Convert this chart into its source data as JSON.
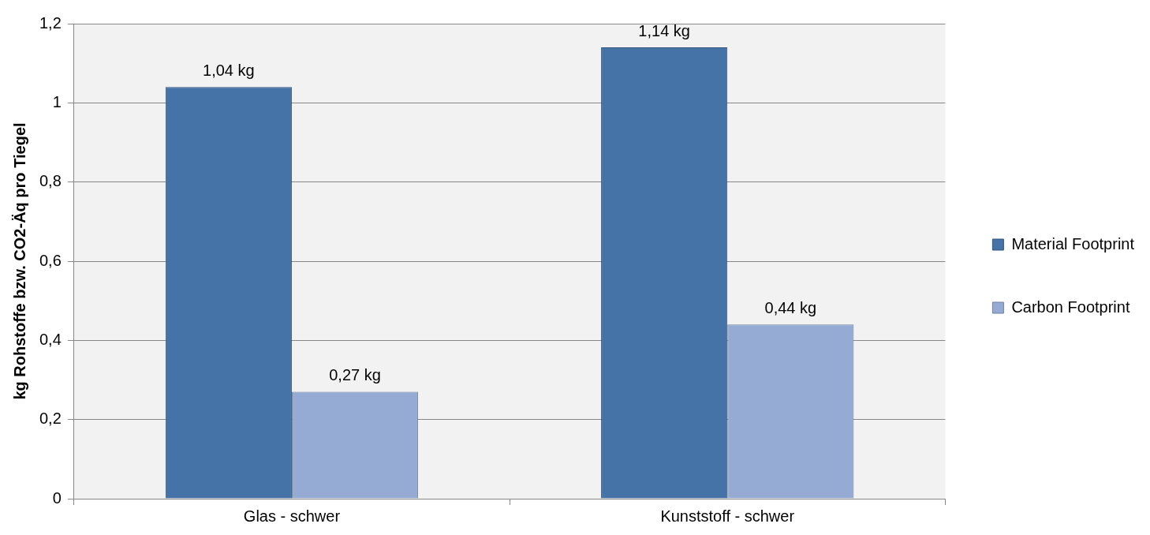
{
  "chart_data": {
    "type": "bar",
    "ylabel": "kg Rohstoffe bzw. CO2-Äq pro Tiegel",
    "categories": [
      "Glas - schwer",
      "Kunststoff - schwer"
    ],
    "series": [
      {
        "name": "Material Footprint",
        "color": "#4572a7",
        "values": [
          1.04,
          1.14
        ],
        "value_labels": [
          "1,04 kg",
          "1,14 kg"
        ]
      },
      {
        "name": "Carbon Footprint",
        "color": "#95abd3",
        "values": [
          0.27,
          0.44
        ],
        "value_labels": [
          "0,27 kg",
          "0,44 kg"
        ]
      }
    ],
    "ylim": [
      0,
      1.2
    ],
    "yticks": [
      0,
      {
        "value": 0.2,
        "label": "0,2"
      },
      {
        "value": 0.4,
        "label": "0,4"
      },
      {
        "value": 0.6,
        "label": "0,6"
      },
      {
        "value": 0.8,
        "label": "0,8"
      },
      1,
      {
        "value": 1.2,
        "label": "1,2"
      }
    ],
    "grid": "y",
    "legend": "right"
  }
}
